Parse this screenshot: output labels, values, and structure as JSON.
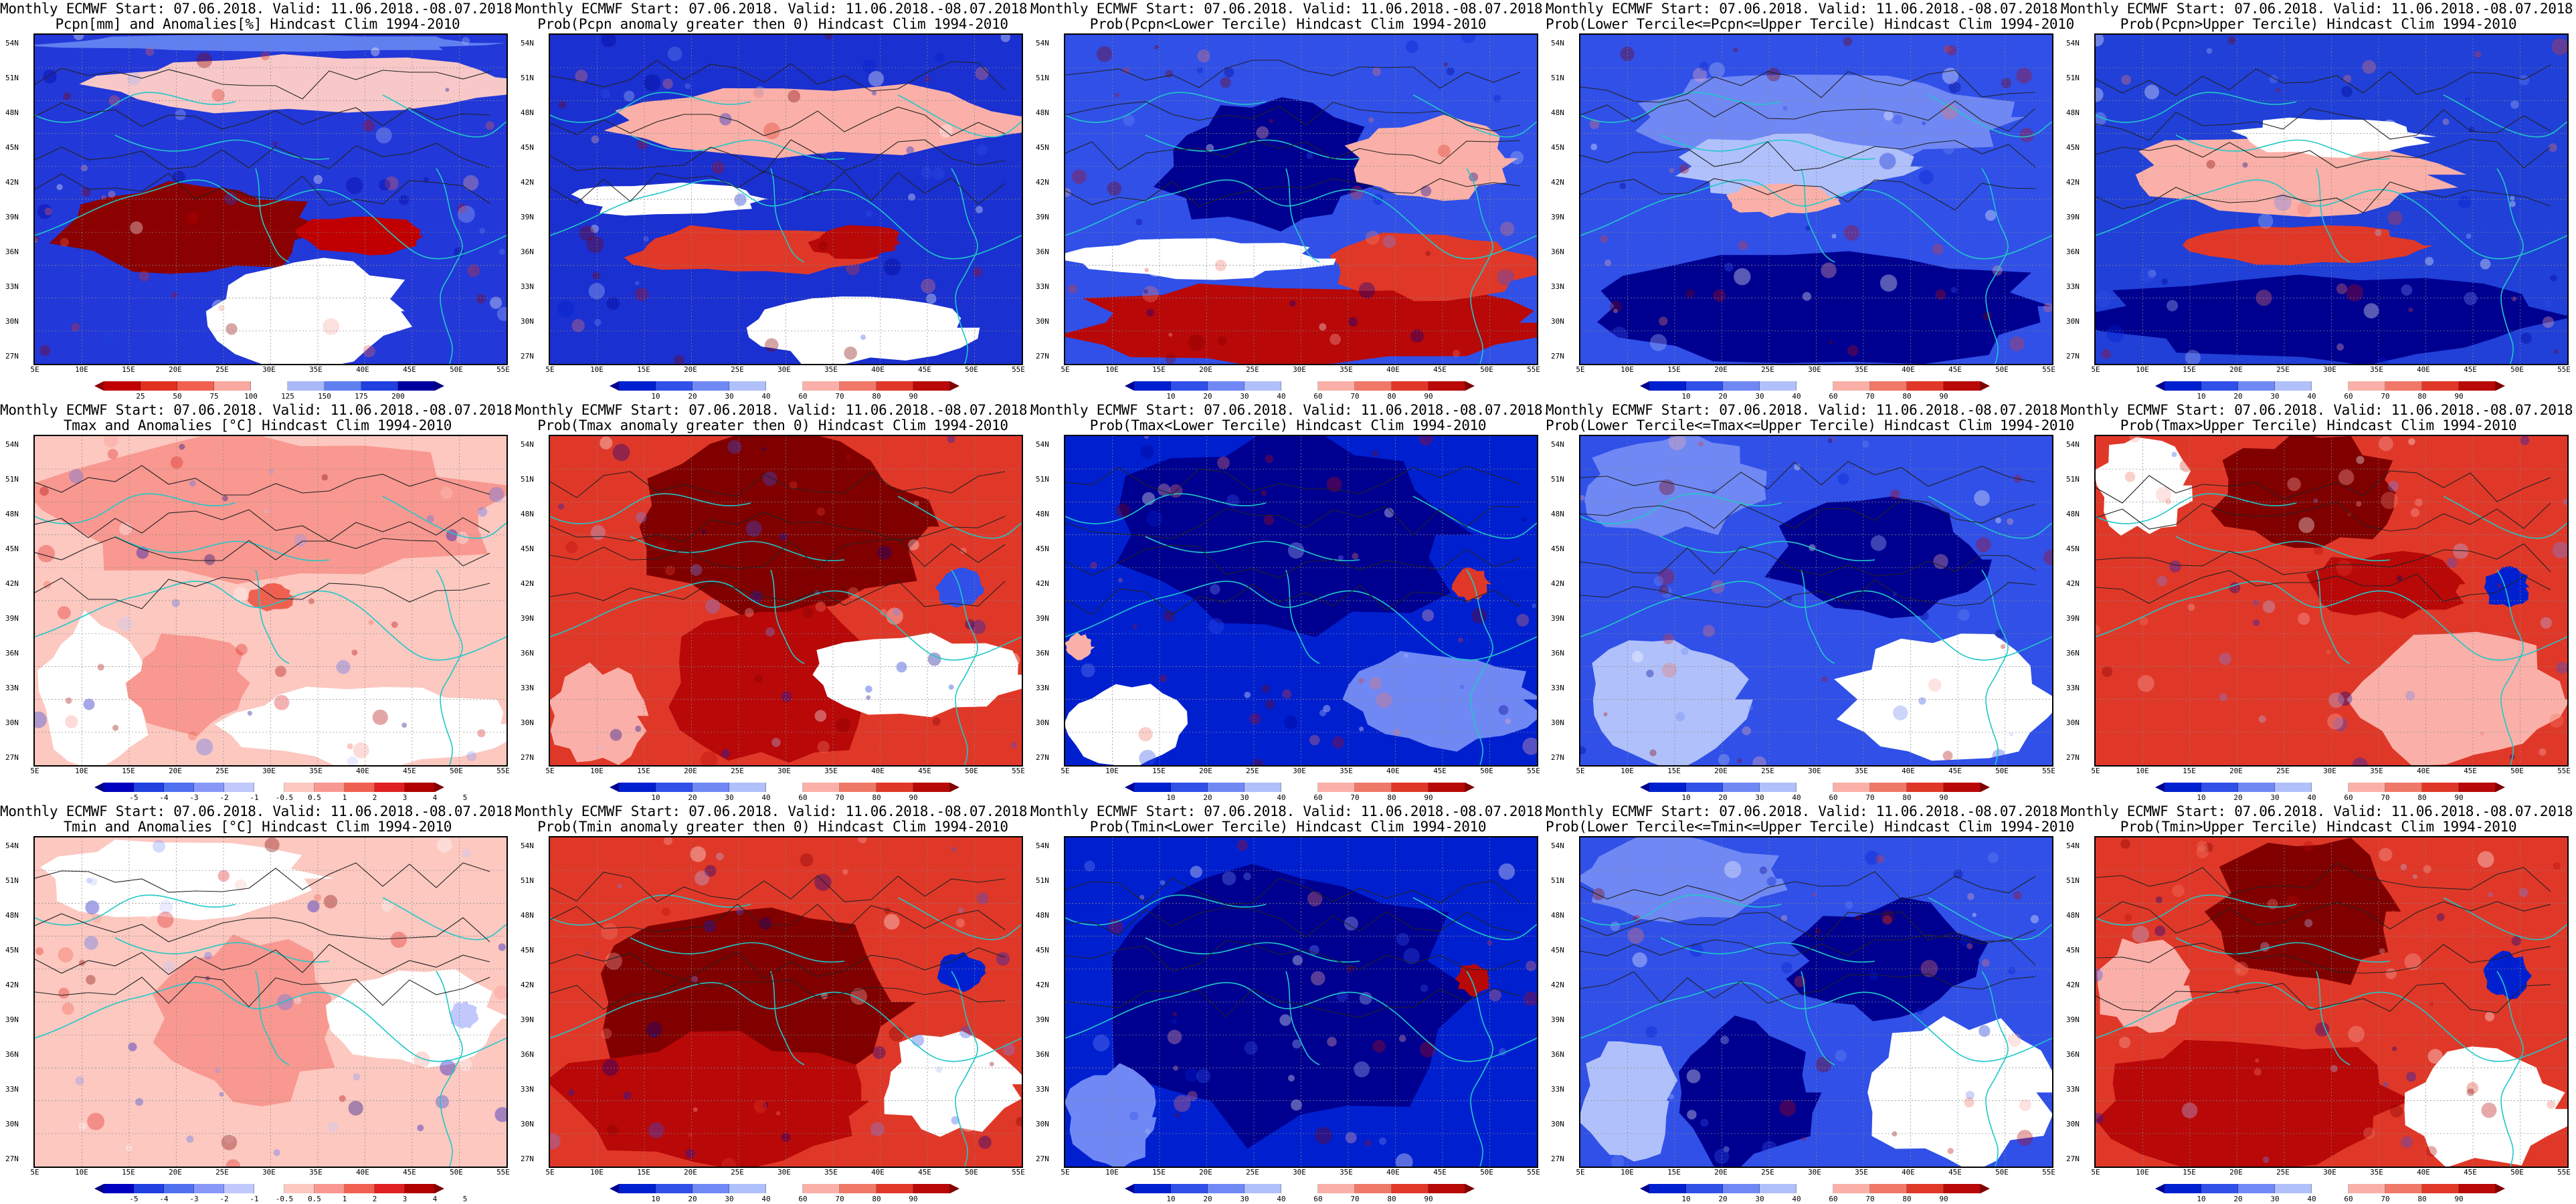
{
  "figure": {
    "lat_labels": [
      "54N",
      "51N",
      "48N",
      "45N",
      "42N",
      "39N",
      "36N",
      "33N",
      "30N",
      "27N"
    ],
    "lon_labels": [
      "5E",
      "10E",
      "15E",
      "20E",
      "25E",
      "30E",
      "35E",
      "40E",
      "45E",
      "50E",
      "55E"
    ]
  },
  "colorbars": {
    "precip_anom": {
      "ticks": [
        "25",
        "50",
        "75",
        "100",
        "125",
        "150",
        "175",
        "200"
      ],
      "colors": [
        "#8b0000",
        "#c00000",
        "#e03020",
        "#f06050",
        "#f8a8a0",
        "#ffffff",
        "#a8b8f8",
        "#6080f0",
        "#2040e0",
        "#0000a0",
        "#000080"
      ]
    },
    "temp_anom": {
      "ticks": [
        "-5",
        "-4",
        "-3",
        "-2",
        "-1",
        "-0.5",
        "0.5",
        "1",
        "2",
        "3",
        "4",
        "5"
      ],
      "colors": [
        "#000080",
        "#0000c0",
        "#2040e0",
        "#5070f0",
        "#8898f8",
        "#c0c8fc",
        "#ffffff",
        "#fcc8c0",
        "#f89890",
        "#f06050",
        "#e02020",
        "#b00000",
        "#800000"
      ]
    },
    "prob": {
      "ticks": [
        "10",
        "20",
        "30",
        "40",
        "60",
        "70",
        "80",
        "90"
      ],
      "colors": [
        "#000090",
        "#0020d0",
        "#3050e8",
        "#7088f4",
        "#b0c0fa",
        "#ffffff",
        "#fab0a8",
        "#f07868",
        "#e03828",
        "#b80808",
        "#800000"
      ]
    }
  },
  "panels": [
    {
      "row": 0,
      "col": 0,
      "title1": "Monthly ECMWF Start: 07.06.2018. Valid: 11.06.2018.-08.07.2018.",
      "title2": "Pcpn[mm] and Anomalies[%] Hindcast Clim 1994-2010",
      "cb": "precip_anom",
      "base": "#2238d8",
      "features": [
        [
          "#f8c8c8",
          0.12,
          0.06,
          0.95,
          0.18
        ],
        [
          "#8b0000",
          0.05,
          0.45,
          0.55,
          0.28
        ],
        [
          "#c00000",
          0.55,
          0.55,
          0.28,
          0.12
        ],
        [
          "#ffffff",
          0.36,
          0.68,
          0.44,
          0.32
        ],
        [
          "#6080f0",
          0.0,
          0.0,
          1.0,
          0.05
        ]
      ]
    },
    {
      "row": 0,
      "col": 1,
      "title1": "Monthly ECMWF Start: 07.06.2018. Valid: 11.06.2018.-08.07.2018.",
      "title2": "Prob(Pcpn anomaly greater then 0) Hindcast Clim 1994-2010",
      "cb": "prob",
      "base": "#1a30d0",
      "features": [
        [
          "#fab0a8",
          0.1,
          0.15,
          0.9,
          0.22
        ],
        [
          "#e03828",
          0.15,
          0.58,
          0.55,
          0.15
        ],
        [
          "#b80808",
          0.55,
          0.58,
          0.2,
          0.1
        ],
        [
          "#ffffff",
          0.05,
          0.45,
          0.4,
          0.1
        ],
        [
          "#ffffff",
          0.4,
          0.78,
          0.5,
          0.22
        ]
      ]
    },
    {
      "row": 0,
      "col": 2,
      "title1": "Monthly ECMWF Start: 07.06.2018. Valid: 11.06.2018.-08.07.2018.",
      "title2": "Prob(Pcpn<Lower Tercile) Hindcast Clim 1994-2010",
      "cb": "prob",
      "base": "#3050e8",
      "features": [
        [
          "#b80808",
          0.0,
          0.75,
          1.0,
          0.25
        ],
        [
          "#e03828",
          0.55,
          0.6,
          0.45,
          0.2
        ],
        [
          "#000090",
          0.2,
          0.2,
          0.45,
          0.4
        ],
        [
          "#ffffff",
          0.0,
          0.62,
          0.55,
          0.12
        ],
        [
          "#fab0a8",
          0.6,
          0.25,
          0.35,
          0.25
        ]
      ]
    },
    {
      "row": 0,
      "col": 3,
      "title1": "Monthly ECMWF Start: 07.06.2018. Valid: 11.06.2018.-08.07.2018.",
      "title2": "Prob(Lower Tercile<=Pcpn<=Upper Tercile) Hindcast Clim 1994-2010",
      "cb": "prob",
      "base": "#3050e8",
      "features": [
        [
          "#000090",
          0.0,
          0.65,
          1.0,
          0.35
        ],
        [
          "#7088f4",
          0.1,
          0.1,
          0.8,
          0.3
        ],
        [
          "#b0c0fa",
          0.2,
          0.3,
          0.5,
          0.2
        ],
        [
          "#fab0a8",
          0.3,
          0.45,
          0.25,
          0.1
        ]
      ]
    },
    {
      "row": 0,
      "col": 4,
      "title1": "Monthly ECMWF Start: 07.06.2018. Valid: 11.06.2018.-08.07.2018.",
      "title2": "Prob(Pcpn>Upper Tercile) Hindcast Clim 1994-2010",
      "cb": "prob",
      "base": "#2040d8",
      "features": [
        [
          "#e03828",
          0.2,
          0.58,
          0.5,
          0.12
        ],
        [
          "#fab0a8",
          0.05,
          0.3,
          0.7,
          0.25
        ],
        [
          "#000090",
          0.0,
          0.72,
          1.0,
          0.28
        ],
        [
          "#ffffff",
          0.3,
          0.25,
          0.4,
          0.12
        ]
      ]
    },
    {
      "row": 1,
      "col": 0,
      "title1": "Monthly ECMWF Start: 07.06.2018. Valid: 11.06.2018.-08.07.2018.",
      "title2": "Tmax and Anomalies [°C] Hindcast Clim 1994-2010",
      "cb": "temp_anom",
      "base": "#fcc8c0",
      "features": [
        [
          "#f89890",
          0.0,
          0.0,
          1.0,
          0.45
        ],
        [
          "#f06050",
          0.45,
          0.45,
          0.1,
          0.08
        ],
        [
          "#ffffff",
          0.0,
          0.55,
          0.25,
          0.45
        ],
        [
          "#ffffff",
          0.4,
          0.75,
          0.6,
          0.25
        ],
        [
          "#f89890",
          0.2,
          0.6,
          0.25,
          0.3
        ]
      ]
    },
    {
      "row": 1,
      "col": 1,
      "title1": "Monthly ECMWF Start: 07.06.2018. Valid: 11.06.2018.-08.07.2018.",
      "title2": "Prob(Tmax anomaly greater then 0) Hindcast Clim 1994-2010",
      "cb": "prob",
      "base": "#e03828",
      "features": [
        [
          "#800000",
          0.15,
          0.0,
          0.65,
          0.55
        ],
        [
          "#b80808",
          0.25,
          0.5,
          0.45,
          0.5
        ],
        [
          "#ffffff",
          0.55,
          0.6,
          0.45,
          0.25
        ],
        [
          "#3050e8",
          0.82,
          0.4,
          0.1,
          0.12
        ],
        [
          "#fab0a8",
          0.0,
          0.7,
          0.2,
          0.3
        ]
      ]
    },
    {
      "row": 1,
      "col": 2,
      "title1": "Monthly ECMWF Start: 07.06.2018. Valid: 11.06.2018.-08.07.2018.",
      "title2": "Prob(Tmax<Lower Tercile) Hindcast Clim 1994-2010",
      "cb": "prob",
      "base": "#0020d0",
      "features": [
        [
          "#000090",
          0.1,
          0.0,
          0.75,
          0.6
        ],
        [
          "#ffffff",
          0.0,
          0.75,
          0.25,
          0.25
        ],
        [
          "#7088f4",
          0.6,
          0.65,
          0.4,
          0.3
        ],
        [
          "#e03828",
          0.82,
          0.4,
          0.08,
          0.1
        ],
        [
          "#fab0a8",
          0.0,
          0.6,
          0.06,
          0.08
        ]
      ]
    },
    {
      "row": 1,
      "col": 3,
      "title1": "Monthly ECMWF Start: 07.06.2018. Valid: 11.06.2018.-08.07.2018.",
      "title2": "Prob(Lower Tercile<=Tmax<=Upper Tercile) Hindcast Clim 1994-2010",
      "cb": "prob",
      "base": "#3050e8",
      "features": [
        [
          "#000090",
          0.4,
          0.2,
          0.45,
          0.35
        ],
        [
          "#b0c0fa",
          0.0,
          0.6,
          0.35,
          0.4
        ],
        [
          "#ffffff",
          0.55,
          0.6,
          0.45,
          0.4
        ],
        [
          "#7088f4",
          0.0,
          0.0,
          0.4,
          0.3
        ]
      ]
    },
    {
      "row": 1,
      "col": 4,
      "title1": "Monthly ECMWF Start: 07.06.2018. Valid: 11.06.2018.-08.07.2018.",
      "title2": "Prob(Tmax>Upper Tercile) Hindcast Clim 1994-2010",
      "cb": "prob",
      "base": "#e03828",
      "features": [
        [
          "#800000",
          0.25,
          0.0,
          0.4,
          0.35
        ],
        [
          "#b80808",
          0.45,
          0.35,
          0.35,
          0.2
        ],
        [
          "#ffffff",
          0.0,
          0.0,
          0.2,
          0.3
        ],
        [
          "#fab0a8",
          0.55,
          0.6,
          0.45,
          0.4
        ],
        [
          "#0020d0",
          0.82,
          0.4,
          0.1,
          0.12
        ]
      ]
    },
    {
      "row": 2,
      "col": 0,
      "title1": "Monthly ECMWF Start: 07.06.2018. Valid: 11.06.2018.-08.07.2018.",
      "title2": "Tmin and Anomalies [°C] Hindcast Clim 1994-2010",
      "cb": "temp_anom",
      "base": "#fcc8c0",
      "features": [
        [
          "#ffffff",
          0.0,
          0.0,
          0.6,
          0.25
        ],
        [
          "#f89890",
          0.25,
          0.3,
          0.4,
          0.5
        ],
        [
          "#ffffff",
          0.6,
          0.4,
          0.4,
          0.3
        ],
        [
          "#c0c8fc",
          0.88,
          0.5,
          0.06,
          0.08
        ]
      ]
    },
    {
      "row": 2,
      "col": 1,
      "title1": "Monthly ECMWF Start: 07.06.2018. Valid: 11.06.2018.-08.07.2018.",
      "title2": "Prob(Tmin anomaly greater then 0) Hindcast Clim 1994-2010",
      "cb": "prob",
      "base": "#e03828",
      "features": [
        [
          "#800000",
          0.1,
          0.2,
          0.65,
          0.6
        ],
        [
          "#b80808",
          0.0,
          0.6,
          0.7,
          0.4
        ],
        [
          "#0020d0",
          0.82,
          0.35,
          0.1,
          0.12
        ],
        [
          "#ffffff",
          0.7,
          0.6,
          0.3,
          0.3
        ]
      ]
    },
    {
      "row": 2,
      "col": 2,
      "title1": "Monthly ECMWF Start: 07.06.2018. Valid: 11.06.2018.-08.07.2018.",
      "title2": "Prob(Tmin<Lower Tercile) Hindcast Clim 1994-2010",
      "cb": "prob",
      "base": "#0020d0",
      "features": [
        [
          "#000090",
          0.05,
          0.05,
          0.8,
          0.85
        ],
        [
          "#b80808",
          0.83,
          0.38,
          0.07,
          0.1
        ],
        [
          "#7088f4",
          0.0,
          0.7,
          0.2,
          0.3
        ]
      ]
    },
    {
      "row": 2,
      "col": 3,
      "title1": "Monthly ECMWF Start: 07.06.2018. Valid: 11.06.2018.-08.07.2018.",
      "title2": "Prob(Lower Tercile<=Tmin<=Upper Tercile) Hindcast Clim 1994-2010",
      "cb": "prob",
      "base": "#3050e8",
      "features": [
        [
          "#000090",
          0.45,
          0.2,
          0.4,
          0.35
        ],
        [
          "#000090",
          0.2,
          0.55,
          0.3,
          0.45
        ],
        [
          "#ffffff",
          0.6,
          0.55,
          0.4,
          0.45
        ],
        [
          "#b0c0fa",
          0.0,
          0.6,
          0.2,
          0.4
        ],
        [
          "#7088f4",
          0.0,
          0.0,
          0.45,
          0.25
        ]
      ]
    },
    {
      "row": 2,
      "col": 4,
      "title1": "Monthly ECMWF Start: 07.06.2018. Valid: 11.06.2018.-08.07.2018.",
      "title2": "Prob(Tmin>Upper Tercile) Hindcast Clim 1994-2010",
      "cb": "prob",
      "base": "#e03828",
      "features": [
        [
          "#800000",
          0.25,
          0.0,
          0.4,
          0.45
        ],
        [
          "#b80808",
          0.0,
          0.6,
          0.65,
          0.4
        ],
        [
          "#0020d0",
          0.82,
          0.35,
          0.1,
          0.14
        ],
        [
          "#ffffff",
          0.65,
          0.65,
          0.35,
          0.35
        ],
        [
          "#fab0a8",
          0.0,
          0.3,
          0.2,
          0.3
        ]
      ]
    }
  ]
}
